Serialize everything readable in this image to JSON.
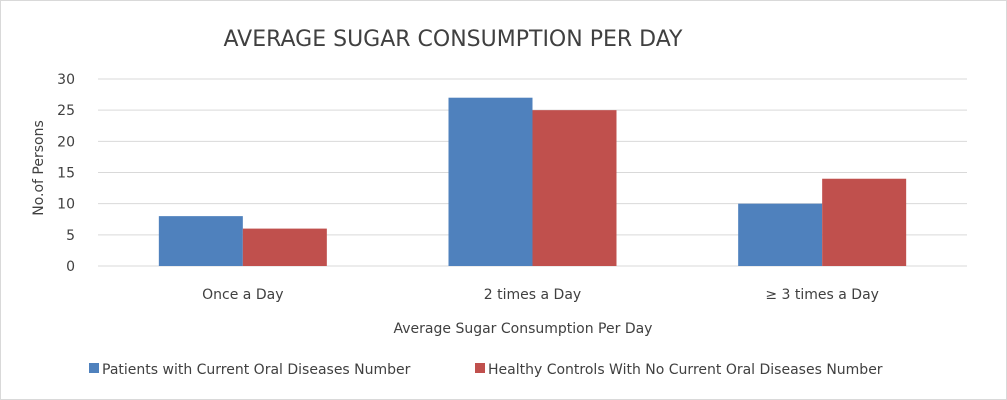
{
  "chart_data": {
    "type": "bar",
    "title": "AVERAGE SUGAR CONSUMPTION PER DAY",
    "xlabel": "Average Sugar Consumption Per Day",
    "ylabel": "No.of Persons",
    "categories": [
      "Once a Day",
      "2 times a Day",
      "≥ 3 times a Day"
    ],
    "series": [
      {
        "name": "Patients with Current Oral Diseases Number",
        "values": [
          8,
          27,
          10
        ],
        "color": "#4f81bd"
      },
      {
        "name": "Healthy Controls With No Current Oral Diseases Number",
        "values": [
          6,
          25,
          14
        ],
        "color": "#c0504d"
      }
    ],
    "ylim": [
      0,
      30
    ],
    "yticks": [
      0,
      5,
      10,
      15,
      20,
      25,
      30
    ],
    "grid": true,
    "legend_position": "bottom",
    "gridline_color": "#d9d9d9"
  }
}
